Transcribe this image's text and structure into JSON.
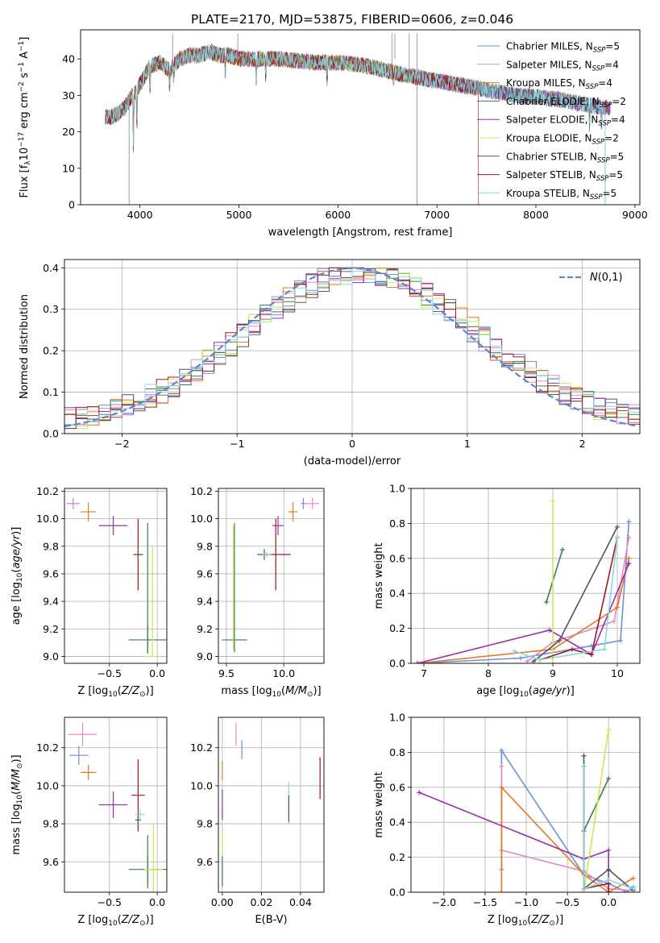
{
  "figure_title": "PLATE=2170, MJD=53875, FIBERID=0606, z=0.046",
  "colors": {
    "chabrier_miles": "#6a8fe0",
    "salpeter_miles": "#e78ac3",
    "kroupa_miles": "#e07b20",
    "chabrier_elodie": "#3d7a52",
    "salpeter_elodie": "#9b2eb0",
    "kroupa_elodie": "#c8ea50",
    "chabrier_stelib": "#555555",
    "salpeter_stelib": "#a11818",
    "kroupa_stelib": "#88d8e0",
    "gauss": "#5b86d6",
    "grid": "#b0b0b0"
  },
  "chart_data": [
    {
      "id": "spectrum",
      "type": "line",
      "xlabel": "wavelength [Angstrom, rest frame]",
      "ylabel": "Flux [f_λ10^{-17} erg cm^{-2} s^{-1} A^{-1}]",
      "xlim": [
        3400,
        9050
      ],
      "ylim": [
        0,
        48
      ],
      "xticks": [
        4000,
        5000,
        6000,
        7000,
        8000,
        9000
      ],
      "yticks": [
        0,
        10,
        20,
        30,
        40
      ],
      "grid": false,
      "legend_position": "top-right",
      "legend": [
        {
          "label": "Chabrier MILES, N",
          "sub": "SSP",
          "tail": "=5",
          "color": "chabrier_miles"
        },
        {
          "label": "Salpeter MILES, N",
          "sub": "SSP",
          "tail": "=4",
          "color": "salpeter_miles"
        },
        {
          "label": "Kroupa MILES, N",
          "sub": "SSP",
          "tail": "=4",
          "color": "kroupa_miles"
        },
        {
          "label": "Chabrier ELODIE, N",
          "sub": "SSP",
          "tail": "=2",
          "color": "chabrier_elodie"
        },
        {
          "label": "Salpeter ELODIE, N",
          "sub": "SSP",
          "tail": "=4",
          "color": "salpeter_elodie"
        },
        {
          "label": "Kroupa ELODIE, N",
          "sub": "SSP",
          "tail": "=2",
          "color": "kroupa_elodie"
        },
        {
          "label": "Chabrier STELIB, N",
          "sub": "SSP",
          "tail": "=5",
          "color": "chabrier_stelib"
        },
        {
          "label": "Salpeter STELIB, N",
          "sub": "SSP",
          "tail": "=5",
          "color": "salpeter_stelib"
        },
        {
          "label": "Kroupa STELIB, N",
          "sub": "SSP",
          "tail": "=5",
          "color": "kroupa_stelib"
        }
      ],
      "continuum": [
        [
          3650,
          24
        ],
        [
          3700,
          24
        ],
        [
          3780,
          25
        ],
        [
          3850,
          27
        ],
        [
          3900,
          29
        ],
        [
          4000,
          33
        ],
        [
          4100,
          38
        ],
        [
          4200,
          39
        ],
        [
          4300,
          37
        ],
        [
          4400,
          40
        ],
        [
          4500,
          41
        ],
        [
          4600,
          41
        ],
        [
          4700,
          42
        ],
        [
          4800,
          41
        ],
        [
          4900,
          41
        ],
        [
          5000,
          40
        ],
        [
          5200,
          40
        ],
        [
          5400,
          40
        ],
        [
          5600,
          39.5
        ],
        [
          5800,
          39
        ],
        [
          6000,
          39
        ],
        [
          6200,
          38.5
        ],
        [
          6400,
          37.5
        ],
        [
          6600,
          36
        ],
        [
          6800,
          35
        ],
        [
          7000,
          34
        ],
        [
          7200,
          33
        ],
        [
          7400,
          32
        ],
        [
          7600,
          31
        ],
        [
          7800,
          30
        ],
        [
          8000,
          29.5
        ],
        [
          8200,
          29
        ],
        [
          8400,
          28
        ],
        [
          8600,
          27
        ],
        [
          8800,
          26.5
        ]
      ],
      "cutoffs": {
        "salpeter_stelib": 7420,
        "kroupa_elodie": 6800,
        "chabrier_stelib": 8700,
        "kroupa_stelib": 8700
      }
    },
    {
      "id": "residuals",
      "type": "histogram",
      "xlabel": "(data-model)/error",
      "ylabel": "Normed distribution",
      "xlim": [
        -2.5,
        2.5
      ],
      "ylim": [
        0,
        0.42
      ],
      "xticks": [
        -2,
        -1,
        0,
        1,
        2
      ],
      "yticks": [
        0.0,
        0.1,
        0.2,
        0.3,
        0.4
      ],
      "grid": true,
      "legend_position": "top-right",
      "legend_label": "N(0,1)",
      "bin_width": 0.1
    },
    {
      "id": "age_vs_Z",
      "type": "errorbar",
      "xlabel": "Z [log10(Z/Z⊙)]",
      "ylabel": "age  [log10(age/yr)]",
      "xlim": [
        -0.97,
        0.1
      ],
      "ylim": [
        8.95,
        10.22
      ],
      "xticks": [
        -0.5,
        0.0
      ],
      "yticks": [
        9.0,
        9.2,
        9.4,
        9.6,
        9.8,
        10.0,
        10.2
      ],
      "grid": true,
      "points": [
        {
          "series": "chabrier_miles",
          "x": -0.88,
          "y": 10.11,
          "xerr": 0.06,
          "yerr": 0.04
        },
        {
          "series": "salpeter_miles",
          "x": -0.88,
          "y": 10.11,
          "xerr": 0.07,
          "yerr": 0.04
        },
        {
          "series": "kroupa_miles",
          "x": -0.72,
          "y": 10.05,
          "xerr": 0.08,
          "yerr": 0.07
        },
        {
          "series": "salpeter_elodie",
          "x": -0.46,
          "y": 9.95,
          "xerr": 0.15,
          "yerr": 0.07
        },
        {
          "series": "salpeter_stelib",
          "x": -0.2,
          "y": 9.74,
          "xerr": 0.05,
          "yerr": 0.26
        },
        {
          "series": "chabrier_stelib",
          "x": -0.2,
          "y": 9.74,
          "xerr": 0.03,
          "yerr": 0.04
        },
        {
          "series": "chabrier_elodie",
          "x": -0.1,
          "y": 9.12,
          "xerr": 0.2,
          "yerr": 0.1
        },
        {
          "series": "chabrier_elodie",
          "x": -0.1,
          "y": 9.5,
          "xerr": 0.0,
          "yerr": 0.47
        },
        {
          "series": "kroupa_elodie",
          "x": -0.05,
          "y": 9.0,
          "xerr": 0.07,
          "yerr": 0.0
        },
        {
          "series": "kroupa_elodie",
          "x": -0.05,
          "y": 9.4,
          "xerr": 0.0,
          "yerr": 0.4
        }
      ]
    },
    {
      "id": "age_vs_mass",
      "type": "errorbar",
      "xlabel": "mass [log10(M/M⊙)]",
      "ylabel": "",
      "xlim": [
        9.43,
        10.35
      ],
      "ylim": [
        8.95,
        10.22
      ],
      "xticks": [
        9.5,
        10.0
      ],
      "yticks": [
        9.0,
        9.2,
        9.4,
        9.6,
        9.8,
        10.0,
        10.2
      ],
      "grid": true,
      "points": [
        {
          "series": "chabrier_miles",
          "x": 10.17,
          "y": 10.11,
          "xerr": 0.02,
          "yerr": 0.04
        },
        {
          "series": "salpeter_miles",
          "x": 10.25,
          "y": 10.11,
          "xerr": 0.06,
          "yerr": 0.04
        },
        {
          "series": "kroupa_miles",
          "x": 10.08,
          "y": 10.05,
          "xerr": 0.04,
          "yerr": 0.07
        },
        {
          "series": "salpeter_elodie",
          "x": 9.95,
          "y": 9.95,
          "xerr": 0.05,
          "yerr": 0.07
        },
        {
          "series": "salpeter_stelib",
          "x": 9.93,
          "y": 9.74,
          "xerr": 0.13,
          "yerr": 0.26
        },
        {
          "series": "chabrier_stelib",
          "x": 9.83,
          "y": 9.74,
          "xerr": 0.06,
          "yerr": 0.04
        },
        {
          "series": "kroupa_stelib",
          "x": 9.85,
          "y": 9.74,
          "xerr": 0.04,
          "yerr": 0.02
        },
        {
          "series": "chabrier_elodie",
          "x": 9.57,
          "y": 9.12,
          "xerr": 0.11,
          "yerr": 0.0
        },
        {
          "series": "chabrier_elodie",
          "x": 9.57,
          "y": 9.5,
          "xerr": 0.0,
          "yerr": 0.47
        },
        {
          "series": "kroupa_elodie",
          "x": 9.56,
          "y": 9.5,
          "xerr": 0.0,
          "yerr": 0.45
        }
      ]
    },
    {
      "id": "mw_vs_age",
      "type": "line",
      "xlabel": "age  [log10(age/yr)]",
      "ylabel": "mass weight",
      "xlim": [
        6.8,
        10.35
      ],
      "ylim": [
        0,
        1.0
      ],
      "xticks": [
        7,
        8,
        9,
        10
      ],
      "yticks": [
        0.0,
        0.2,
        0.4,
        0.6,
        0.8,
        1.0
      ],
      "grid": true,
      "lines": [
        {
          "series": "chabrier_miles",
          "points": [
            [
              6.9,
              0.0
            ],
            [
              8.5,
              0.03
            ],
            [
              9.6,
              0.1
            ],
            [
              10.05,
              0.13
            ],
            [
              10.18,
              0.81
            ]
          ]
        },
        {
          "series": "salpeter_miles",
          "points": [
            [
              8.6,
              0.01
            ],
            [
              9.0,
              0.12
            ],
            [
              9.95,
              0.24
            ],
            [
              10.18,
              0.72
            ]
          ]
        },
        {
          "series": "kroupa_miles",
          "points": [
            [
              6.9,
              0.0
            ],
            [
              9.0,
              0.08
            ],
            [
              10.0,
              0.32
            ],
            [
              10.18,
              0.6
            ]
          ]
        },
        {
          "series": "chabrier_elodie",
          "points": [
            [
              8.9,
              0.35
            ],
            [
              9.15,
              0.65
            ]
          ]
        },
        {
          "series": "salpeter_elodie",
          "points": [
            [
              6.9,
              0.0
            ],
            [
              8.95,
              0.19
            ],
            [
              9.6,
              0.05
            ],
            [
              10.18,
              0.57
            ]
          ]
        },
        {
          "series": "kroupa_elodie",
          "points": [
            [
              9.0,
              0.0
            ],
            [
              9.0,
              0.93
            ]
          ]
        },
        {
          "series": "chabrier_stelib",
          "points": [
            [
              8.7,
              0.01
            ],
            [
              9.1,
              0.13
            ],
            [
              10.0,
              0.78
            ]
          ]
        },
        {
          "series": "salpeter_stelib",
          "points": [
            [
              8.8,
              0.02
            ],
            [
              9.3,
              0.08
            ],
            [
              9.6,
              0.05
            ],
            [
              10.0,
              0.72
            ]
          ]
        },
        {
          "series": "kroupa_stelib",
          "points": [
            [
              8.4,
              0.07
            ],
            [
              8.8,
              0.02
            ],
            [
              9.8,
              0.08
            ],
            [
              10.0,
              0.72
            ]
          ]
        }
      ]
    },
    {
      "id": "mass_vs_Z",
      "type": "errorbar",
      "xlabel": "Z [log10(Z/Z⊙)]",
      "ylabel": "mass [log10(M/M⊙)]",
      "xlim": [
        -0.97,
        0.1
      ],
      "ylim": [
        9.44,
        10.36
      ],
      "xticks": [
        -0.5,
        0.0
      ],
      "yticks": [
        9.6,
        9.8,
        10.0,
        10.2
      ],
      "grid": true,
      "points": [
        {
          "series": "salpeter_miles",
          "x": -0.78,
          "y": 10.27,
          "xerr": 0.15,
          "yerr": 0.06
        },
        {
          "series": "chabrier_miles",
          "x": -0.82,
          "y": 10.16,
          "xerr": 0.1,
          "yerr": 0.05
        },
        {
          "series": "kroupa_miles",
          "x": -0.72,
          "y": 10.07,
          "xerr": 0.08,
          "yerr": 0.04
        },
        {
          "series": "salpeter_elodie",
          "x": -0.46,
          "y": 9.9,
          "xerr": 0.15,
          "yerr": 0.07
        },
        {
          "series": "salpeter_stelib",
          "x": -0.2,
          "y": 9.95,
          "xerr": 0.07,
          "yerr": 0.19
        },
        {
          "series": "chabrier_stelib",
          "x": -0.2,
          "y": 9.82,
          "xerr": 0.03,
          "yerr": 0.03
        },
        {
          "series": "kroupa_stelib",
          "x": -0.18,
          "y": 9.85,
          "xerr": 0.05,
          "yerr": 0.03
        },
        {
          "series": "chabrier_elodie",
          "x": -0.1,
          "y": 9.56,
          "xerr": 0.2,
          "yerr": 0.07
        },
        {
          "series": "chabrier_elodie",
          "x": -0.1,
          "y": 9.6,
          "xerr": 0.0,
          "yerr": 0.14
        },
        {
          "series": "kroupa_elodie",
          "x": -0.04,
          "y": 9.56,
          "xerr": 0.1,
          "yerr": 0.24
        }
      ]
    },
    {
      "id": "mass_vs_ebv",
      "type": "errorbar",
      "xlabel": "E(B-V)",
      "ylabel": "",
      "xlim": [
        -0.002,
        0.052
      ],
      "ylim": [
        9.44,
        10.36
      ],
      "xticks": [
        0.0,
        0.02,
        0.04
      ],
      "yticks": [
        9.6,
        9.8,
        10.0,
        10.2
      ],
      "grid": true,
      "points": [
        {
          "series": "salpeter_miles",
          "x": 0.007,
          "y": 10.27,
          "xerr": 0,
          "yerr": 0.06
        },
        {
          "series": "chabrier_miles",
          "x": 0.01,
          "y": 10.19,
          "xerr": 0,
          "yerr": 0.05
        },
        {
          "series": "kroupa_miles",
          "x": 0.0,
          "y": 10.08,
          "xerr": 0,
          "yerr": 0.05
        },
        {
          "series": "salpeter_elodie",
          "x": 0.0,
          "y": 9.9,
          "xerr": 0,
          "yerr": 0.08
        },
        {
          "series": "kroupa_elodie",
          "x": 0.0,
          "y": 9.62,
          "xerr": 0,
          "yerr": 0.14
        },
        {
          "series": "chabrier_elodie",
          "x": 0.0,
          "y": 9.55,
          "xerr": 0,
          "yerr": 0.08
        },
        {
          "series": "kroupa_stelib",
          "x": 0.034,
          "y": 9.91,
          "xerr": 0,
          "yerr": 0.11
        },
        {
          "series": "chabrier_stelib",
          "x": 0.034,
          "y": 9.88,
          "xerr": 0,
          "yerr": 0.07
        },
        {
          "series": "salpeter_stelib",
          "x": 0.05,
          "y": 10.04,
          "xerr": 0,
          "yerr": 0.11
        }
      ]
    },
    {
      "id": "mw_vs_Z",
      "type": "line",
      "xlabel": "Z [log10(Z/Z⊙)]",
      "ylabel": "mass weight",
      "xlim": [
        -2.4,
        0.38
      ],
      "ylim": [
        0,
        1.0
      ],
      "xticks": [
        -2.0,
        -1.5,
        -1.0,
        -0.5,
        0.0
      ],
      "yticks": [
        0.0,
        0.2,
        0.4,
        0.6,
        0.8,
        1.0
      ],
      "grid": true,
      "lines": [
        {
          "series": "chabrier_miles",
          "points": [
            [
              -1.3,
              0.13
            ],
            [
              -1.3,
              0.81
            ],
            [
              -0.3,
              0.1
            ],
            [
              0.0,
              0.05
            ],
            [
              0.22,
              0.0
            ],
            [
              0.3,
              0.03
            ]
          ]
        },
        {
          "series": "salpeter_miles",
          "points": [
            [
              -1.3,
              0.72
            ],
            [
              -1.3,
              0.24
            ],
            [
              -0.3,
              0.12
            ],
            [
              0.0,
              0.02
            ],
            [
              0.3,
              0.01
            ]
          ]
        },
        {
          "series": "kroupa_miles",
          "points": [
            [
              -1.3,
              0.0
            ],
            [
              -1.3,
              0.6
            ],
            [
              -0.3,
              0.1
            ],
            [
              0.0,
              0.0
            ],
            [
              0.3,
              0.08
            ]
          ]
        },
        {
          "series": "chabrier_elodie",
          "points": [
            [
              -0.3,
              0.35
            ],
            [
              0.0,
              0.65
            ]
          ]
        },
        {
          "series": "salpeter_elodie",
          "points": [
            [
              -2.3,
              0.57
            ],
            [
              -0.3,
              0.19
            ],
            [
              0.0,
              0.24
            ],
            [
              0.0,
              0.0
            ]
          ]
        },
        {
          "series": "kroupa_elodie",
          "points": [
            [
              -0.3,
              0.0
            ],
            [
              0.0,
              0.93
            ]
          ]
        },
        {
          "series": "chabrier_stelib",
          "points": [
            [
              -0.3,
              0.78
            ],
            [
              -0.3,
              0.02
            ],
            [
              0.0,
              0.13
            ],
            [
              0.3,
              0.01
            ]
          ]
        },
        {
          "series": "salpeter_stelib",
          "points": [
            [
              -0.3,
              0.72
            ],
            [
              -0.3,
              0.02
            ],
            [
              0.0,
              0.05
            ],
            [
              0.0,
              0.0
            ]
          ]
        },
        {
          "series": "kroupa_stelib",
          "points": [
            [
              -0.3,
              0.72
            ],
            [
              -0.3,
              0.02
            ],
            [
              0.0,
              0.07
            ],
            [
              0.3,
              0.02
            ]
          ]
        }
      ]
    }
  ]
}
